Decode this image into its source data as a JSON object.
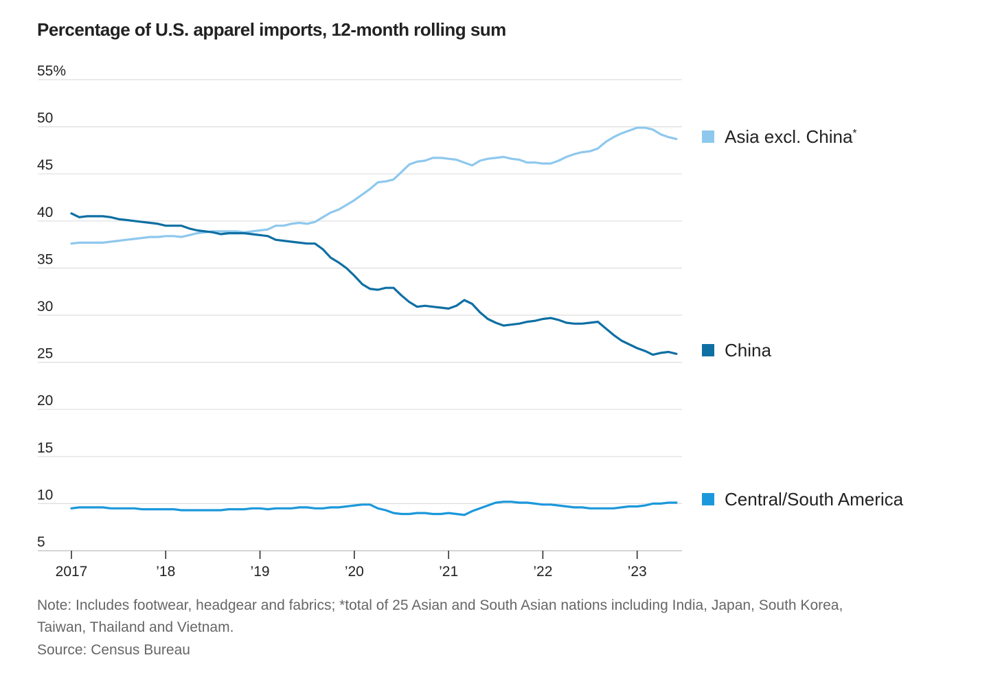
{
  "chart_data": {
    "type": "line",
    "title": "Percentage of U.S. apparel imports, 12-month rolling sum",
    "xlabel": "",
    "ylabel": "",
    "x_start": "2017-01",
    "x_end": "2023-06",
    "x_interval": "monthly",
    "x_ticks": [
      "2017",
      "’18",
      "’19",
      "’20",
      "’21",
      "’22",
      "’23"
    ],
    "y_ticks": [
      "5",
      "10",
      "15",
      "20",
      "25",
      "30",
      "35",
      "40",
      "45",
      "50",
      "55%"
    ],
    "ylim": [
      5,
      55
    ],
    "grid": true,
    "legend_placement": "right, labels at line ends",
    "series": [
      {
        "name": "Asia excl. China*",
        "color": "#8ec8ee",
        "values": [
          37.6,
          37.7,
          37.7,
          37.7,
          37.7,
          37.8,
          37.9,
          38.0,
          38.1,
          38.2,
          38.3,
          38.3,
          38.4,
          38.4,
          38.3,
          38.5,
          38.7,
          38.8,
          38.9,
          38.9,
          38.9,
          38.9,
          38.8,
          38.9,
          39.0,
          39.1,
          39.5,
          39.5,
          39.7,
          39.8,
          39.7,
          39.9,
          40.4,
          40.9,
          41.2,
          41.7,
          42.2,
          42.8,
          43.4,
          44.1,
          44.2,
          44.4,
          45.2,
          46.0,
          46.3,
          46.4,
          46.7,
          46.7,
          46.6,
          46.5,
          46.2,
          45.9,
          46.4,
          46.6,
          46.7,
          46.8,
          46.6,
          46.5,
          46.2,
          46.2,
          46.1,
          46.1,
          46.4,
          46.8,
          47.1,
          47.3,
          47.4,
          47.7,
          48.4,
          48.9,
          49.3,
          49.6,
          49.9,
          49.9,
          49.7,
          49.2,
          48.9,
          48.7
        ]
      },
      {
        "name": "China",
        "color": "#0e6fa3",
        "values": [
          40.8,
          40.4,
          40.5,
          40.5,
          40.5,
          40.4,
          40.2,
          40.1,
          40.0,
          39.9,
          39.8,
          39.7,
          39.5,
          39.5,
          39.5,
          39.2,
          39.0,
          38.9,
          38.8,
          38.6,
          38.7,
          38.7,
          38.7,
          38.6,
          38.5,
          38.4,
          38.0,
          37.9,
          37.8,
          37.7,
          37.6,
          37.6,
          37.0,
          36.1,
          35.6,
          35.0,
          34.2,
          33.3,
          32.8,
          32.7,
          32.9,
          32.9,
          32.1,
          31.4,
          30.9,
          31.0,
          30.9,
          30.8,
          30.7,
          31.0,
          31.6,
          31.2,
          30.3,
          29.6,
          29.2,
          28.9,
          29.0,
          29.1,
          29.3,
          29.4,
          29.6,
          29.7,
          29.5,
          29.2,
          29.1,
          29.1,
          29.2,
          29.3,
          28.6,
          27.9,
          27.3,
          26.9,
          26.5,
          26.2,
          25.8,
          26.0,
          26.1,
          25.9
        ]
      },
      {
        "name": "Central/South America",
        "color": "#1b98db",
        "values": [
          9.5,
          9.6,
          9.6,
          9.6,
          9.6,
          9.5,
          9.5,
          9.5,
          9.5,
          9.4,
          9.4,
          9.4,
          9.4,
          9.4,
          9.3,
          9.3,
          9.3,
          9.3,
          9.3,
          9.3,
          9.4,
          9.4,
          9.4,
          9.5,
          9.5,
          9.4,
          9.5,
          9.5,
          9.5,
          9.6,
          9.6,
          9.5,
          9.5,
          9.6,
          9.6,
          9.7,
          9.8,
          9.9,
          9.9,
          9.5,
          9.3,
          9.0,
          8.9,
          8.9,
          9.0,
          9.0,
          8.9,
          8.9,
          9.0,
          8.9,
          8.8,
          9.2,
          9.5,
          9.8,
          10.1,
          10.2,
          10.2,
          10.1,
          10.1,
          10.0,
          9.9,
          9.9,
          9.8,
          9.7,
          9.6,
          9.6,
          9.5,
          9.5,
          9.5,
          9.5,
          9.6,
          9.7,
          9.7,
          9.8,
          10.0,
          10.0,
          10.1,
          10.1
        ]
      }
    ],
    "notes": [
      "Note: Includes footwear, headgear and fabrics; *total of 25 Asian and South Asian nations including India, Japan, South Korea,",
      "Taiwan, Thailand and Vietnam.",
      "Source: Census Bureau"
    ]
  }
}
